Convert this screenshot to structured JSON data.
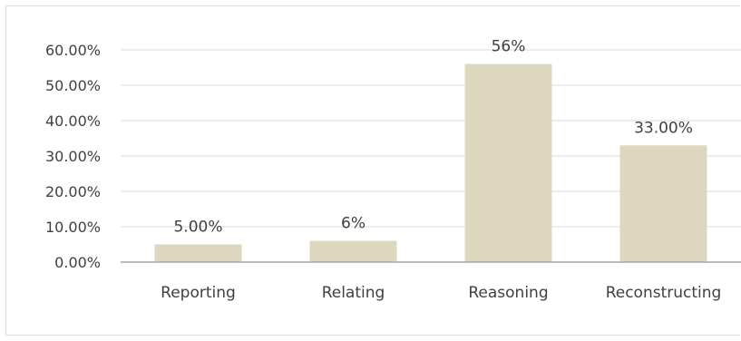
{
  "chart_data": {
    "type": "bar",
    "categories": [
      "Reporting",
      "Relating",
      "Reasoning",
      "Reconstructing"
    ],
    "values": [
      5.0,
      6.0,
      56.0,
      33.0
    ],
    "data_labels": [
      "5.00%",
      "6%",
      "56%",
      "33.00%"
    ],
    "ytick_labels": [
      "0.00%",
      "10.00%",
      "20.00%",
      "30.00%",
      "40.00%",
      "50.00%",
      "60.00%"
    ],
    "yticks": [
      0,
      10,
      20,
      30,
      40,
      50,
      60
    ],
    "ylim": [
      0,
      60
    ],
    "grid": true,
    "legend": "none",
    "title": "",
    "xlabel": "",
    "ylabel": "",
    "colors": {
      "bar": "#ddd7bf",
      "grid": "#d9d9d9",
      "axis": "#a6a6a6",
      "text": "#404040"
    }
  }
}
